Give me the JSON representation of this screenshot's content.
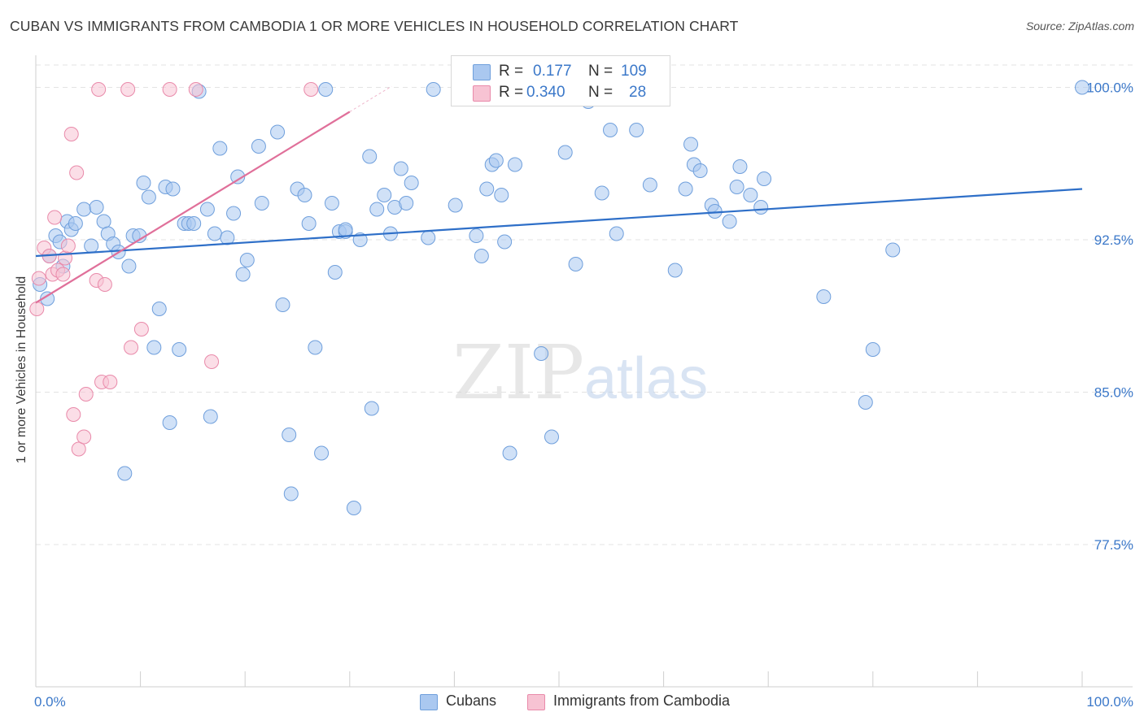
{
  "title": "CUBAN VS IMMIGRANTS FROM CAMBODIA 1 OR MORE VEHICLES IN HOUSEHOLD CORRELATION CHART",
  "source": "Source: ZipAtlas.com",
  "watermark": {
    "zip": "ZIP",
    "atlas": "atlas"
  },
  "colors": {
    "cubans_fill": "#aac8f0",
    "cubans_stroke": "#6f9fdc",
    "cubans_line": "#2e6fc8",
    "cambodia_fill": "#f7c3d3",
    "cambodia_stroke": "#e98aaa",
    "cambodia_line": "#e0709a",
    "tick_label": "#3b78c9",
    "grid": "#e3e3e3"
  },
  "stats": {
    "rows": [
      {
        "r_label": "R =",
        "r_value": "0.177",
        "n_label": "N =",
        "n_value": "109"
      },
      {
        "r_label": "R =",
        "r_value": "0.340",
        "n_label": "N =",
        "n_value": "28"
      }
    ]
  },
  "chart_data": {
    "type": "scatter",
    "title": "CUBAN VS IMMIGRANTS FROM CAMBODIA 1 OR MORE VEHICLES IN HOUSEHOLD CORRELATION CHART",
    "xlabel": "",
    "ylabel": "1 or more Vehicles in Household",
    "xlim": [
      0,
      100
    ],
    "ylim": [
      70.5,
      101.5
    ],
    "x_tick_labels": [
      "0.0%",
      "100.0%"
    ],
    "y_ticks": [
      77.5,
      85.0,
      92.5,
      100.0
    ],
    "y_tick_labels": [
      "77.5%",
      "85.0%",
      "92.5%",
      "100.0%"
    ],
    "grid": true,
    "legend_position": "bottom",
    "series": [
      {
        "name": "Cubans",
        "trend": {
          "x": [
            0,
            100
          ],
          "y": [
            91.7,
            95.0
          ]
        },
        "points": [
          [
            0.4,
            90.3
          ],
          [
            1.1,
            89.6
          ],
          [
            1.3,
            91.7
          ],
          [
            1.9,
            92.7
          ],
          [
            2.3,
            92.4
          ],
          [
            2.6,
            91.2
          ],
          [
            3.0,
            93.4
          ],
          [
            3.4,
            93.0
          ],
          [
            3.8,
            93.3
          ],
          [
            4.6,
            94.0
          ],
          [
            5.3,
            92.2
          ],
          [
            5.8,
            94.1
          ],
          [
            6.5,
            93.4
          ],
          [
            6.9,
            92.8
          ],
          [
            7.4,
            92.3
          ],
          [
            7.9,
            91.9
          ],
          [
            8.5,
            81.0
          ],
          [
            8.9,
            91.2
          ],
          [
            9.3,
            92.7
          ],
          [
            9.9,
            92.7
          ],
          [
            10.3,
            95.3
          ],
          [
            10.8,
            94.6
          ],
          [
            11.3,
            87.2
          ],
          [
            11.8,
            89.1
          ],
          [
            12.4,
            95.1
          ],
          [
            12.8,
            83.5
          ],
          [
            13.1,
            95.0
          ],
          [
            13.7,
            87.1
          ],
          [
            14.2,
            93.3
          ],
          [
            14.6,
            93.3
          ],
          [
            15.1,
            93.3
          ],
          [
            15.6,
            99.8
          ],
          [
            16.4,
            94.0
          ],
          [
            16.7,
            83.8
          ],
          [
            17.1,
            92.8
          ],
          [
            17.6,
            97.0
          ],
          [
            18.3,
            92.6
          ],
          [
            18.9,
            93.8
          ],
          [
            19.3,
            95.6
          ],
          [
            19.8,
            90.8
          ],
          [
            20.2,
            91.5
          ],
          [
            21.3,
            97.1
          ],
          [
            21.6,
            94.3
          ],
          [
            23.1,
            97.8
          ],
          [
            23.6,
            89.3
          ],
          [
            24.2,
            82.9
          ],
          [
            24.4,
            80.0
          ],
          [
            25.0,
            95.0
          ],
          [
            25.7,
            94.7
          ],
          [
            26.1,
            93.3
          ],
          [
            26.7,
            87.2
          ],
          [
            27.3,
            82.0
          ],
          [
            27.7,
            99.9
          ],
          [
            28.3,
            94.3
          ],
          [
            28.6,
            90.9
          ],
          [
            29.0,
            92.9
          ],
          [
            29.6,
            92.9
          ],
          [
            29.6,
            93.0
          ],
          [
            30.4,
            79.3
          ],
          [
            31.0,
            92.5
          ],
          [
            31.9,
            96.6
          ],
          [
            32.1,
            84.2
          ],
          [
            32.6,
            94.0
          ],
          [
            33.3,
            94.7
          ],
          [
            33.9,
            92.8
          ],
          [
            34.3,
            94.1
          ],
          [
            34.9,
            96.0
          ],
          [
            35.4,
            94.3
          ],
          [
            35.9,
            95.3
          ],
          [
            37.5,
            92.6
          ],
          [
            38.0,
            99.9
          ],
          [
            40.1,
            94.2
          ],
          [
            42.1,
            92.7
          ],
          [
            42.6,
            91.7
          ],
          [
            43.1,
            95.0
          ],
          [
            43.6,
            96.2
          ],
          [
            44.0,
            96.4
          ],
          [
            44.5,
            94.7
          ],
          [
            44.8,
            92.4
          ],
          [
            45.3,
            82.0
          ],
          [
            45.8,
            96.2
          ],
          [
            48.3,
            86.9
          ],
          [
            49.3,
            82.8
          ],
          [
            50.6,
            96.8
          ],
          [
            51.6,
            91.3
          ],
          [
            52.8,
            99.3
          ],
          [
            54.1,
            94.8
          ],
          [
            54.9,
            97.9
          ],
          [
            55.5,
            92.8
          ],
          [
            57.4,
            97.9
          ],
          [
            58.7,
            95.2
          ],
          [
            61.1,
            91.0
          ],
          [
            62.1,
            95.0
          ],
          [
            62.6,
            97.2
          ],
          [
            62.9,
            96.2
          ],
          [
            63.5,
            95.9
          ],
          [
            64.6,
            94.2
          ],
          [
            64.9,
            93.9
          ],
          [
            66.3,
            93.4
          ],
          [
            67.0,
            95.1
          ],
          [
            67.3,
            96.1
          ],
          [
            68.3,
            94.7
          ],
          [
            69.3,
            94.1
          ],
          [
            69.6,
            95.5
          ],
          [
            75.3,
            89.7
          ],
          [
            79.3,
            84.5
          ],
          [
            80.0,
            87.1
          ],
          [
            81.9,
            92.0
          ],
          [
            100.0,
            100.0
          ]
        ]
      },
      {
        "name": "Immigrants from Cambodia",
        "trend": {
          "x": [
            0,
            30
          ],
          "y": [
            89.4,
            98.8
          ]
        },
        "points": [
          [
            0.1,
            89.1
          ],
          [
            0.3,
            90.6
          ],
          [
            0.8,
            92.1
          ],
          [
            1.3,
            91.7
          ],
          [
            1.6,
            90.8
          ],
          [
            1.8,
            93.6
          ],
          [
            2.1,
            91.0
          ],
          [
            2.6,
            90.8
          ],
          [
            2.8,
            91.6
          ],
          [
            3.1,
            92.2
          ],
          [
            3.4,
            97.7
          ],
          [
            3.6,
            83.9
          ],
          [
            3.9,
            95.8
          ],
          [
            4.1,
            82.2
          ],
          [
            4.6,
            82.8
          ],
          [
            4.8,
            84.9
          ],
          [
            5.8,
            90.5
          ],
          [
            6.0,
            99.9
          ],
          [
            6.3,
            85.5
          ],
          [
            6.6,
            90.3
          ],
          [
            7.1,
            85.5
          ],
          [
            8.8,
            99.9
          ],
          [
            9.1,
            87.2
          ],
          [
            10.1,
            88.1
          ],
          [
            12.8,
            99.9
          ],
          [
            15.3,
            99.9
          ],
          [
            16.8,
            86.5
          ],
          [
            26.3,
            99.9
          ]
        ]
      }
    ]
  }
}
